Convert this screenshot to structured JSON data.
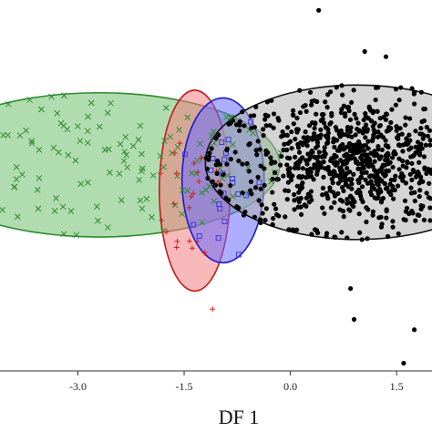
{
  "chart_data": {
    "type": "scatter",
    "xlabel": "DF 1",
    "xlim": [
      -4.1,
      2.0
    ],
    "ylim": [
      -3.2,
      4.0
    ],
    "xticks": [
      -3.0,
      -1.5,
      0.0,
      1.5
    ],
    "xtick_labels": [
      "-3.0",
      "-1.5",
      "0.0",
      "1.5"
    ],
    "grid": false,
    "legend": "none",
    "groups": [
      {
        "marker": "x",
        "color": "#2e8b2e",
        "ellipse": {
          "cx": -2.7,
          "cy": 0.8,
          "rx": 2.55,
          "ry": 1.4,
          "fill": "#6fbf6f",
          "stroke": "#2e8b2e"
        },
        "n": 140,
        "spread": [
          1.45,
          0.72
        ]
      },
      {
        "marker": "+",
        "color": "#d11f1f",
        "ellipse": {
          "cx": -1.35,
          "cy": 0.3,
          "rx": 0.5,
          "ry": 1.95,
          "fill": "#f08080",
          "stroke": "#c21b1b"
        },
        "n": 22,
        "spread": [
          0.28,
          0.9
        ],
        "extra_points": [
          [
            -1.1,
            -2.0
          ]
        ]
      },
      {
        "marker": "square",
        "color": "#3b3bd6",
        "ellipse": {
          "cx": -0.95,
          "cy": 0.5,
          "rx": 0.58,
          "ry": 1.6,
          "fill": "#6b6bff",
          "stroke": "#1a1acc"
        },
        "n": 22,
        "spread": [
          0.3,
          0.85
        ]
      },
      {
        "marker": "dot",
        "color": "#000000",
        "ellipse": {
          "cx": 0.95,
          "cy": 0.85,
          "rx": 2.15,
          "ry": 1.5,
          "fill": "#b0b0b0",
          "stroke": "#111111"
        },
        "n": 950,
        "spread": [
          0.95,
          0.62
        ],
        "extra_points": [
          [
            0.4,
            3.8
          ],
          [
            1.05,
            3.0
          ],
          [
            0.85,
            -1.6
          ],
          [
            0.9,
            -2.2
          ],
          [
            1.75,
            -2.4
          ],
          [
            1.6,
            -3.05
          ],
          [
            1.35,
            2.9
          ]
        ]
      }
    ]
  }
}
